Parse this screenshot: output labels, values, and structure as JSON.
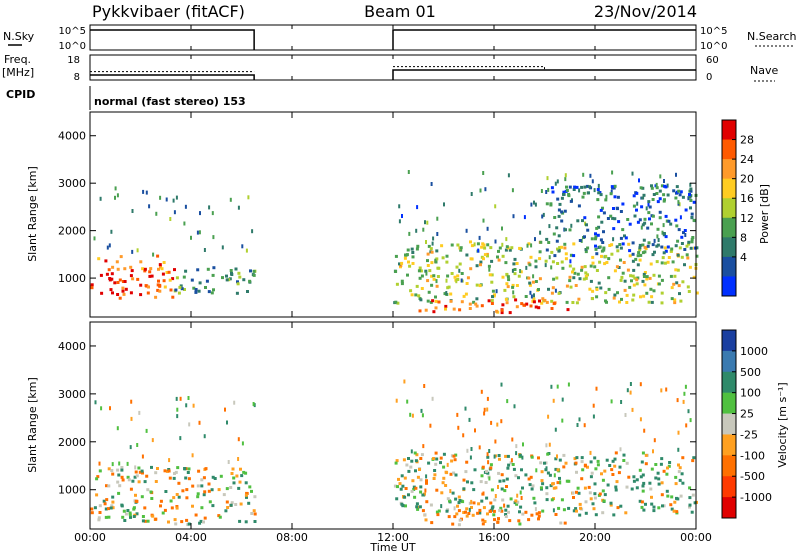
{
  "header": {
    "station": "Pykkvibaer (fitACF)",
    "beam": "Beam 01",
    "date": "23/Nov/2014"
  },
  "param_panels": {
    "nsky_label": "N.Sky",
    "nsky_ticks": [
      "10^5",
      "10^0"
    ],
    "nsearch_label": "N.Search",
    "nsearch_ticks": [
      "10^5",
      "10^0"
    ],
    "freq_label": "Freq.",
    "freq_unit": "[MHz]",
    "freq_ticks": [
      "18",
      "8"
    ],
    "nave_label": "Nave",
    "nave_ticks": [
      "60",
      "0"
    ],
    "cpid_label": "CPID",
    "cpid_value": "normal (fast stereo) 153"
  },
  "power_panel": {
    "ylabel": "Slant Range [km]",
    "yticks": [
      "4000",
      "3000",
      "2000",
      "1000"
    ],
    "colorbar_label": "Power [dB]",
    "colorbar_ticks": [
      "28",
      "24",
      "20",
      "16",
      "12",
      "8",
      "4"
    ],
    "colorbar_colors": [
      "#e00000",
      "#ff5a00",
      "#ff9a2a",
      "#ffcc22",
      "#b0d030",
      "#4aa050",
      "#2f7a6a",
      "#1a4fa0",
      "#0030ff"
    ]
  },
  "velocity_panel": {
    "ylabel": "Slant Range [km]",
    "yticks": [
      "4000",
      "3000",
      "2000",
      "1000"
    ],
    "colorbar_label": "Velocity [m s⁻¹]",
    "colorbar_ticks": [
      "1000",
      "500",
      "100",
      "25",
      "-25",
      "-100",
      "-500",
      "-1000"
    ],
    "colorbar_colors": [
      "#1a3fa0",
      "#3a7ab0",
      "#2f8a6a",
      "#50c040",
      "#c8c8bc",
      "#ffa020",
      "#ff7000",
      "#ff3a00",
      "#e00000"
    ]
  },
  "xaxis": {
    "label": "Time UT",
    "ticks": [
      "00:00",
      "04:00",
      "08:00",
      "12:00",
      "16:00",
      "20:00",
      "00:00"
    ]
  },
  "chart_data": {
    "type": "heatmap",
    "x_range_hours": [
      0,
      24
    ],
    "y_range_km": [
      180,
      4500
    ],
    "data_gap_hours": [
      6.5,
      12.0
    ],
    "nsky_trace": [
      {
        "t": 0,
        "v": 10000.0
      },
      {
        "t": 6.5,
        "v": 10000.0
      },
      {
        "t": 12.0,
        "v": 10000.0
      },
      {
        "t": 24,
        "v": 10000.0
      }
    ],
    "freq_trace": [
      {
        "t": 0,
        "v": 10
      },
      {
        "t": 6.5,
        "v": 10
      },
      {
        "t": 12.0,
        "v": 12
      },
      {
        "t": 24,
        "v": 12
      }
    ],
    "nave_trace": [
      {
        "t": 0,
        "v": 20
      },
      {
        "t": 6.5,
        "v": 20
      },
      {
        "t": 12.0,
        "v": 32
      },
      {
        "t": 18.0,
        "v": 32
      },
      {
        "t": 18.0,
        "v": 24
      },
      {
        "t": 24,
        "v": 24
      }
    ],
    "power_regions": [
      {
        "t0": 0.0,
        "t1": 3.3,
        "r0": 600,
        "r1": 1500,
        "level": 26
      },
      {
        "t0": 3.3,
        "t1": 6.5,
        "r0": 700,
        "r1": 1300,
        "level": 9
      },
      {
        "t0": 12.0,
        "t1": 24.0,
        "r0": 500,
        "r1": 1800,
        "level": 15
      },
      {
        "t0": 13.0,
        "t1": 19.0,
        "r0": 300,
        "r1": 600,
        "level": 27
      },
      {
        "t0": 18.0,
        "t1": 24.0,
        "r0": 1500,
        "r1": 3000,
        "level": 6
      }
    ],
    "velocity_regions": [
      {
        "t0": 0.0,
        "t1": 6.5,
        "r0": 300,
        "r1": 1500,
        "level": 0
      },
      {
        "t0": 12.0,
        "t1": 24.0,
        "r0": 500,
        "r1": 1800,
        "level": 50
      },
      {
        "t0": 13.0,
        "t1": 19.0,
        "r0": 300,
        "r1": 600,
        "level": -150
      }
    ]
  }
}
